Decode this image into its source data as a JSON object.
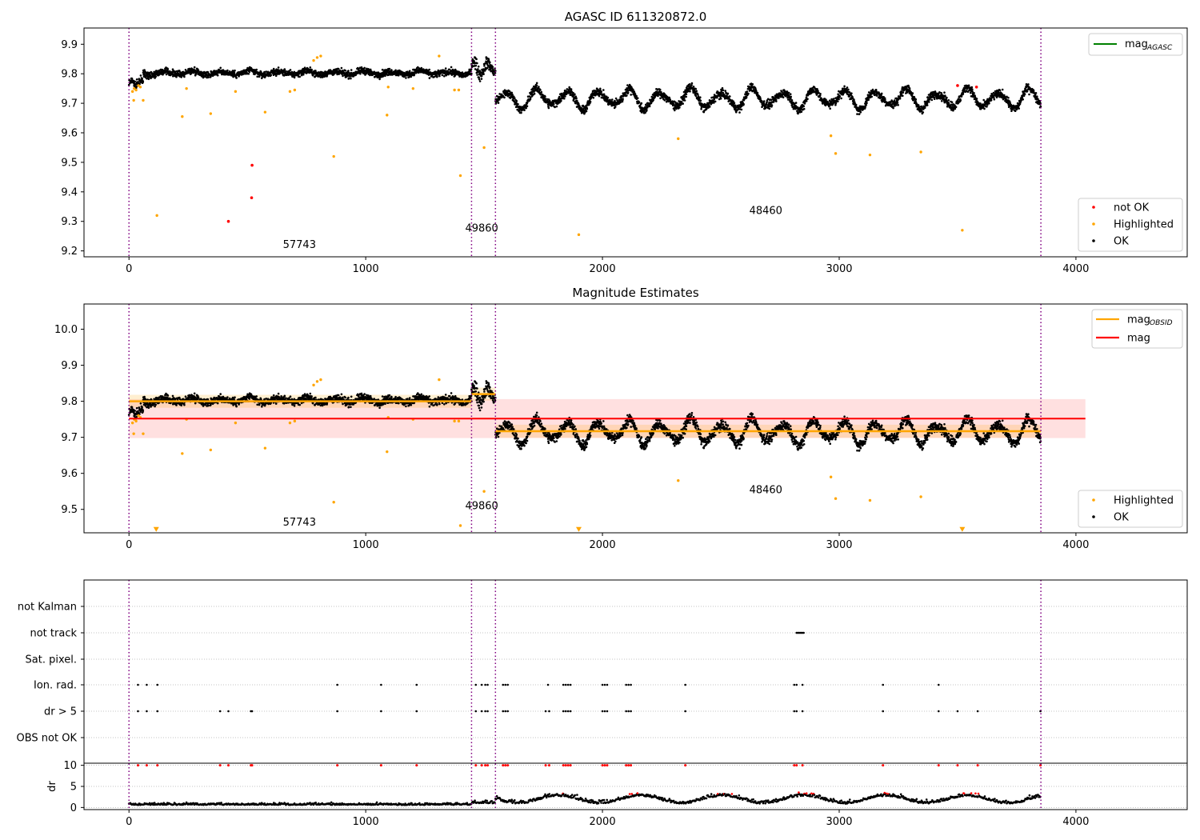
{
  "chart_data": [
    {
      "type": "scatter",
      "title": "AGASC ID 611320872.0",
      "xlim": [
        -190,
        4470
      ],
      "ylim": [
        9.18,
        9.955
      ],
      "xticks": [
        0,
        1000,
        2000,
        3000,
        4000
      ],
      "yticks": [
        9.2,
        9.3,
        9.4,
        9.5,
        9.6,
        9.7,
        9.8,
        9.9
      ],
      "vlines": [
        0,
        1447,
        1548,
        3852
      ],
      "legend_lines": [
        {
          "label": "mag",
          "sub": "AGASC",
          "color": "#008000"
        }
      ],
      "legend_points": [
        {
          "label": "not OK",
          "color": "#ff0000"
        },
        {
          "label": "Highlighted",
          "color": "#ffa500"
        },
        {
          "label": "OK",
          "color": "#000000"
        }
      ],
      "annotations": [
        {
          "text": "57743",
          "x": 720,
          "y": 9.21
        },
        {
          "text": "49860",
          "x": 1490,
          "y": 9.265
        },
        {
          "text": "48460",
          "x": 2690,
          "y": 9.325
        }
      ],
      "highlighted_points": [
        [
          15,
          9.74
        ],
        [
          22,
          9.75
        ],
        [
          30,
          9.745
        ],
        [
          40,
          9.76
        ],
        [
          48,
          9.755
        ],
        [
          20,
          9.71
        ],
        [
          60,
          9.71
        ],
        [
          118,
          9.32
        ],
        [
          225,
          9.655
        ],
        [
          243,
          9.75
        ],
        [
          345,
          9.665
        ],
        [
          450,
          9.74
        ],
        [
          575,
          9.67
        ],
        [
          680,
          9.74
        ],
        [
          700,
          9.745
        ],
        [
          780,
          9.845
        ],
        [
          795,
          9.855
        ],
        [
          810,
          9.86
        ],
        [
          865,
          9.52
        ],
        [
          1090,
          9.66
        ],
        [
          1095,
          9.755
        ],
        [
          1200,
          9.75
        ],
        [
          1310,
          9.86
        ],
        [
          1375,
          9.745
        ],
        [
          1393,
          9.745
        ],
        [
          1400,
          9.455
        ],
        [
          1500,
          9.55
        ],
        [
          1900,
          9.255
        ],
        [
          2320,
          9.58
        ],
        [
          2965,
          9.59
        ],
        [
          2985,
          9.53
        ],
        [
          3130,
          9.525
        ],
        [
          3345,
          9.535
        ],
        [
          3520,
          9.27
        ]
      ],
      "notok_points": [
        [
          420,
          9.3
        ],
        [
          520,
          9.49
        ],
        [
          518,
          9.38
        ],
        [
          3500,
          9.76
        ],
        [
          3580,
          9.755
        ]
      ],
      "ok_segments": [
        {
          "x0": 0,
          "x1": 60,
          "level": 9.77,
          "amp": 0.01,
          "noise": 0.012,
          "period": 40
        },
        {
          "x0": 60,
          "x1": 1447,
          "level": 9.803,
          "amp": 0.008,
          "noise": 0.011,
          "period": 120
        },
        {
          "x0": 1447,
          "x1": 1548,
          "level": 9.82,
          "amp": 0.025,
          "noise": 0.02,
          "period": 60
        },
        {
          "x0": 1548,
          "x1": 3852,
          "level": 9.715,
          "amp": 0.04,
          "noise": 0.014,
          "period": 130
        }
      ]
    },
    {
      "type": "scatter",
      "title": "Magnitude Estimates",
      "xlim": [
        -190,
        4470
      ],
      "ylim": [
        9.435,
        10.07
      ],
      "xticks": [
        0,
        1000,
        2000,
        3000,
        4000
      ],
      "yticks": [
        9.5,
        9.6,
        9.7,
        9.8,
        9.9,
        10.0
      ],
      "vlines": [
        0,
        1447,
        1548,
        3852
      ],
      "legend_lines": [
        {
          "label": "mag",
          "sub": "OBSID",
          "color": "#ffa500"
        },
        {
          "label": "mag",
          "sub": "",
          "color": "#ff0000"
        }
      ],
      "legend_points": [
        {
          "label": "Highlighted",
          "color": "#ffa500"
        },
        {
          "label": "OK",
          "color": "#000000"
        }
      ],
      "mag_band": {
        "x0": 0,
        "x1": 4040,
        "y": 9.752,
        "lo": 9.698,
        "hi": 9.806
      },
      "obsid_steps": [
        {
          "x0": 0,
          "x1": 1447,
          "y": 9.8
        },
        {
          "x0": 1447,
          "x1": 1548,
          "y": 9.82
        },
        {
          "x0": 1548,
          "x1": 3852,
          "y": 9.717
        }
      ],
      "annotations": [
        {
          "text": "57743",
          "x": 720,
          "y": 9.455
        },
        {
          "text": "49860",
          "x": 1490,
          "y": 9.5
        },
        {
          "text": "48460",
          "x": 2690,
          "y": 9.545
        }
      ],
      "triangle_markers": [
        [
          115,
          9.44
        ],
        [
          1900,
          9.44
        ],
        [
          3520,
          9.44
        ]
      ]
    },
    {
      "type": "scatter",
      "title": "",
      "xlim": [
        -190,
        4470
      ],
      "xticks": [
        0,
        1000,
        2000,
        3000,
        4000
      ],
      "vlines": [
        0,
        1447,
        1548,
        3852
      ],
      "categories": [
        "not Kalman",
        "not track",
        "Sat. pixel.",
        "Ion. rad.",
        "dr > 5",
        "OBS not OK"
      ],
      "flag_points": {
        "not track": [
          2820,
          2825,
          2830,
          2835,
          2840,
          2845,
          2850
        ],
        "Ion. rad.": [
          38,
          75,
          120,
          880,
          1065,
          1215,
          1465,
          1490,
          1505,
          1515,
          1580,
          1590,
          1600,
          1770,
          1835,
          1845,
          1855,
          1865,
          2000,
          2010,
          2020,
          2100,
          2110,
          2120,
          2350,
          2810,
          2820,
          2845,
          3185,
          3420
        ],
        "dr > 5": [
          38,
          75,
          120,
          385,
          420,
          515,
          520,
          880,
          1065,
          1215,
          1465,
          1490,
          1505,
          1515,
          1580,
          1590,
          1600,
          1760,
          1775,
          1835,
          1845,
          1855,
          1865,
          2000,
          2010,
          2020,
          2100,
          2110,
          2120,
          2350,
          2810,
          2820,
          2845,
          3185,
          3420,
          3500,
          3585,
          3850
        ]
      },
      "dr_axis": {
        "ylabel": "dr",
        "yticks": [
          0,
          5,
          10
        ],
        "ylim": [
          -0.5,
          10.5
        ]
      }
    }
  ]
}
